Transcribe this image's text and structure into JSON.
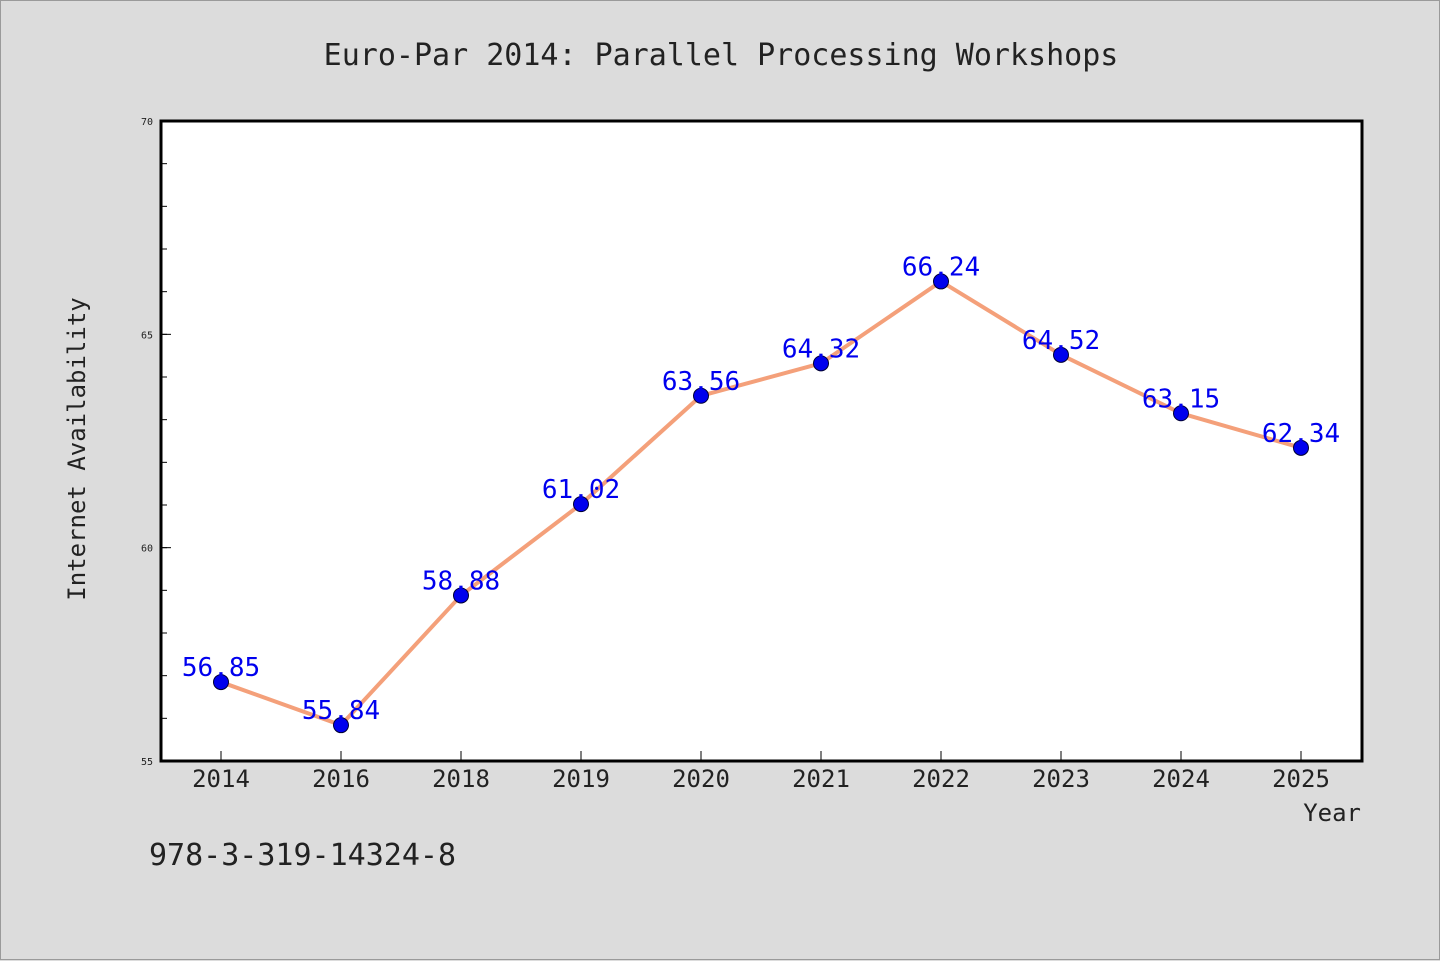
{
  "chart_data": {
    "type": "line",
    "title": "Euro-Par 2014: Parallel Processing Workshops",
    "xlabel": "Year",
    "ylabel": "Internet Availability",
    "categories": [
      "2014",
      "2016",
      "2018",
      "2019",
      "2020",
      "2021",
      "2022",
      "2023",
      "2024",
      "2025"
    ],
    "series": [
      {
        "values": [
          56.85,
          55.84,
          58.88,
          61.02,
          63.56,
          64.32,
          66.24,
          64.52,
          63.15,
          62.34
        ],
        "labels": [
          "56.85",
          "55.84",
          "58.88",
          "61.02",
          "63.56",
          "64.32",
          "66.24",
          "64.52",
          "63.15",
          "62.34"
        ]
      }
    ],
    "ylim": [
      55,
      70
    ],
    "yticks": [
      "55",
      "60",
      "65",
      "70"
    ],
    "yminor_step": 1,
    "grid": false,
    "legend": "none",
    "colors": {
      "line": "#f4a07a",
      "marker": "#0000ee",
      "data_label": "#0000ee",
      "background": "#dcdcdc",
      "plot_area": "#ffffff"
    }
  },
  "footer": {
    "text": "978-3-319-14324-8"
  }
}
